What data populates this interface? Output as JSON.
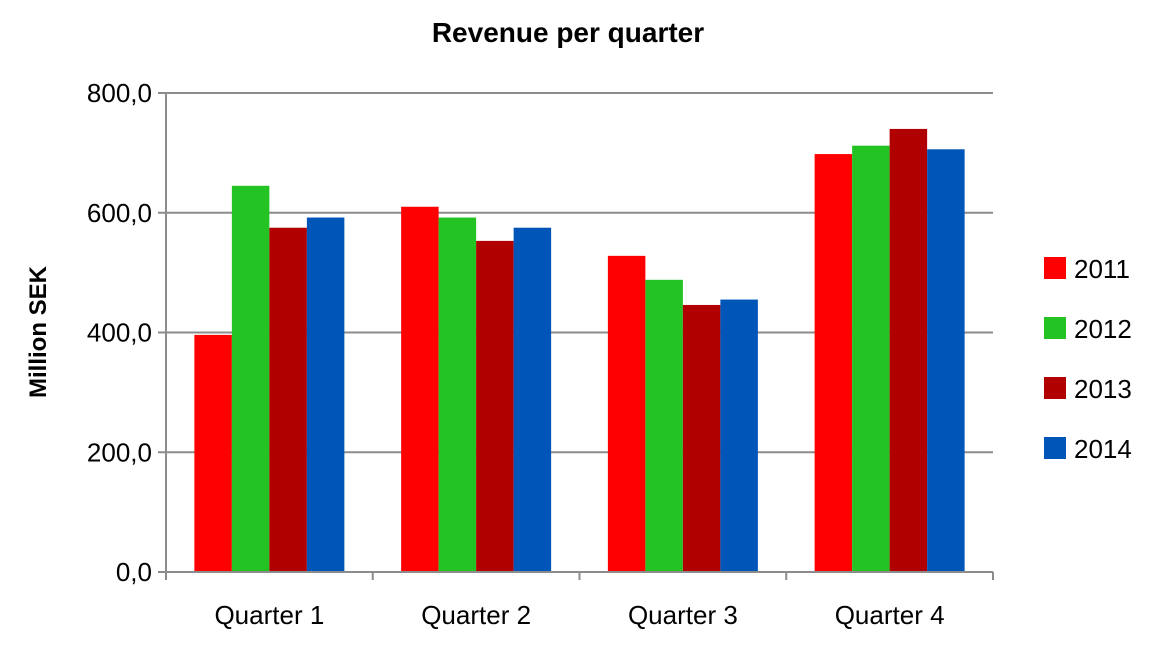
{
  "chart_data": {
    "type": "bar",
    "title": "Revenue per quarter",
    "xlabel": "",
    "ylabel": "Million SEK",
    "ylim": [
      0,
      800
    ],
    "yticks": [
      "0,0",
      "200,0",
      "400,0",
      "600,0",
      "800,0"
    ],
    "categories": [
      "Quarter 1",
      "Quarter 2",
      "Quarter 3",
      "Quarter 4"
    ],
    "series": [
      {
        "name": "2011",
        "color": "#ff0000",
        "values": [
          396,
          610,
          528,
          698
        ]
      },
      {
        "name": "2012",
        "color": "#22c322",
        "values": [
          645,
          592,
          488,
          712
        ]
      },
      {
        "name": "2013",
        "color": "#b00000",
        "values": [
          575,
          553,
          446,
          740
        ]
      },
      {
        "name": "2014",
        "color": "#0055b8",
        "values": [
          592,
          575,
          455,
          706
        ]
      }
    ],
    "grid": true,
    "legend": "right"
  }
}
